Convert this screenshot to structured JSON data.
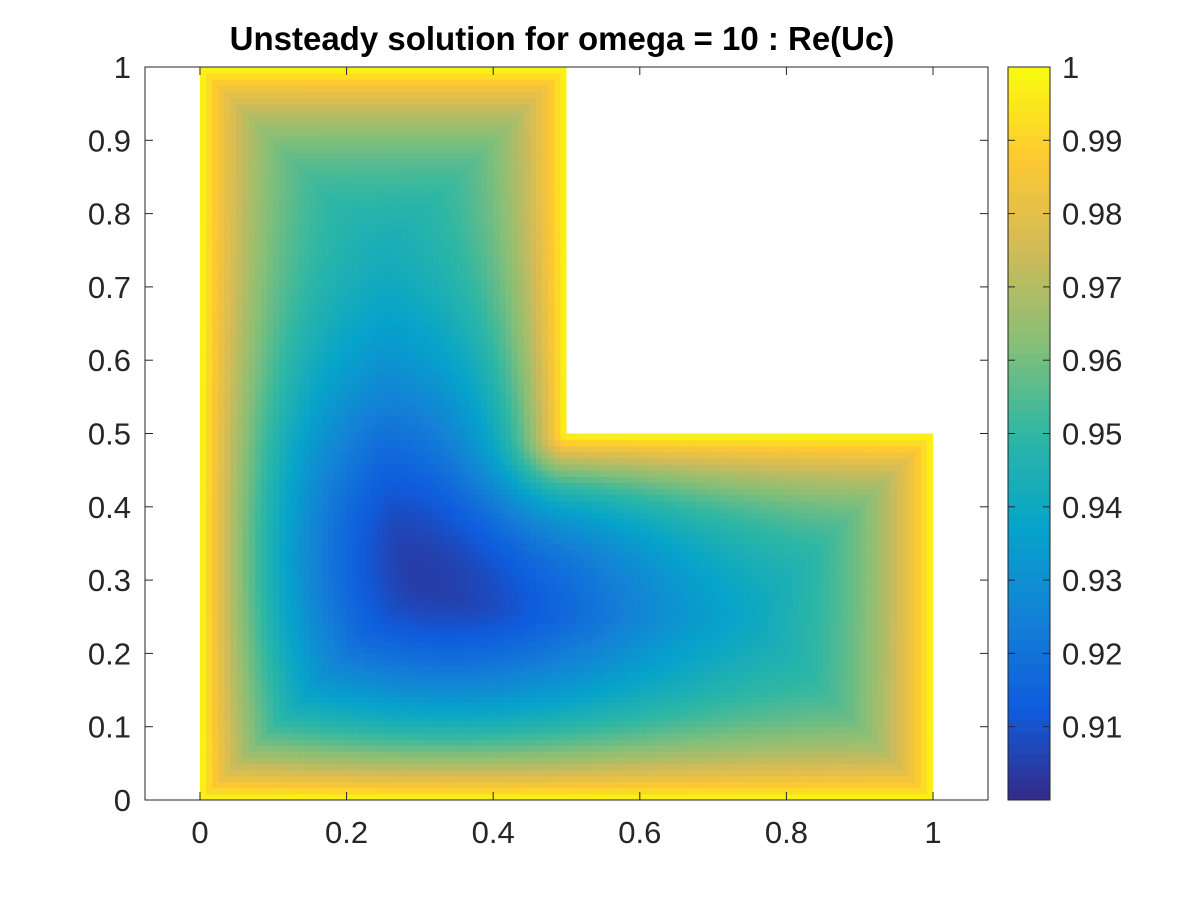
{
  "chart_data": {
    "type": "heatmap",
    "title": "Unsteady solution  for omega = 10 : Re(Uc)",
    "xlabel": "",
    "ylabel": "",
    "xlim": [
      -0.075,
      1.075
    ],
    "ylim": [
      0,
      1
    ],
    "x_ticks": [
      "0",
      "0.2",
      "0.4",
      "0.6",
      "0.8",
      "1"
    ],
    "x_tick_values": [
      0,
      0.2,
      0.4,
      0.6,
      0.8,
      1
    ],
    "y_ticks": [
      "0",
      "0.1",
      "0.2",
      "0.3",
      "0.4",
      "0.5",
      "0.6",
      "0.7",
      "0.8",
      "0.9",
      "1"
    ],
    "y_tick_values": [
      0,
      0.1,
      0.2,
      0.3,
      0.4,
      0.5,
      0.6,
      0.7,
      0.8,
      0.9,
      1
    ],
    "domain": {
      "shape": "L",
      "polygon": [
        [
          0,
          0
        ],
        [
          1,
          0
        ],
        [
          1,
          0.5
        ],
        [
          0.5,
          0.5
        ],
        [
          0.5,
          1
        ],
        [
          0,
          1
        ]
      ]
    },
    "field": {
      "boundary_value": 1.0,
      "min_value": 0.9,
      "min_location": [
        0.34,
        0.33
      ]
    },
    "colorbar": {
      "range": [
        0.9,
        1.0
      ],
      "ticks": [
        "0.91",
        "0.92",
        "0.93",
        "0.94",
        "0.95",
        "0.96",
        "0.97",
        "0.98",
        "0.99",
        "1"
      ],
      "tick_values": [
        0.91,
        0.92,
        0.93,
        0.94,
        0.95,
        0.96,
        0.97,
        0.98,
        0.99,
        1.0
      ],
      "colormap": "parula",
      "colormap_stops": [
        "#352a87",
        "#0f5cdd",
        "#1481d6",
        "#06a4ca",
        "#2eb7a4",
        "#87bf77",
        "#d1bb59",
        "#fec832",
        "#f9fb0e"
      ]
    },
    "grid": false,
    "legend": "none"
  }
}
